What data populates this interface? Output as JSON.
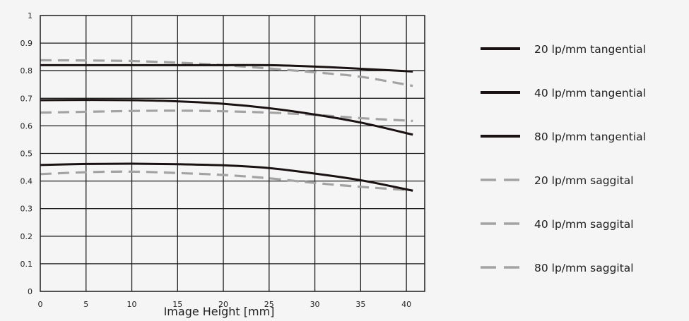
{
  "chart_data": {
    "type": "line",
    "title": "",
    "xlabel": "Image Height [mm]",
    "ylabel": "",
    "xlim": [
      0,
      42
    ],
    "ylim": [
      0,
      1
    ],
    "xticks": [
      0,
      5,
      10,
      15,
      20,
      25,
      30,
      35,
      40
    ],
    "yticks": [
      0,
      0.1,
      0.2,
      0.3,
      0.4,
      0.5,
      0.6,
      0.7,
      0.8,
      0.9,
      1
    ],
    "grid": true,
    "legend_position": "right",
    "series": [
      {
        "name": "20 lp/mm tangential",
        "color": "#1a1212",
        "style": "solid",
        "x": [
          0,
          5,
          10,
          15,
          20,
          25,
          30,
          35,
          40.7
        ],
        "y": [
          0.82,
          0.82,
          0.82,
          0.82,
          0.82,
          0.82,
          0.815,
          0.807,
          0.797
        ]
      },
      {
        "name": "40 lp/mm tangential",
        "color": "#1a1212",
        "style": "solid",
        "x": [
          0,
          5,
          10,
          15,
          20,
          25,
          30,
          35,
          40.7
        ],
        "y": [
          0.693,
          0.694,
          0.693,
          0.689,
          0.68,
          0.664,
          0.641,
          0.612,
          0.568
        ]
      },
      {
        "name": "80 lp/mm tangential",
        "color": "#1a1212",
        "style": "solid",
        "x": [
          0,
          5,
          10,
          15,
          20,
          25,
          30,
          35,
          40.7
        ],
        "y": [
          0.458,
          0.462,
          0.463,
          0.461,
          0.457,
          0.447,
          0.427,
          0.403,
          0.365
        ]
      },
      {
        "name": "20 lp/mm saggital",
        "color": "#a3a3a3",
        "style": "dashed",
        "x": [
          0,
          5,
          10,
          15,
          20,
          25,
          30,
          35,
          40.7
        ],
        "y": [
          0.838,
          0.837,
          0.835,
          0.829,
          0.82,
          0.808,
          0.794,
          0.778,
          0.745
        ]
      },
      {
        "name": "40 lp/mm saggital",
        "color": "#a3a3a3",
        "style": "dashed",
        "x": [
          0,
          5,
          10,
          15,
          20,
          25,
          30,
          35,
          40.7
        ],
        "y": [
          0.648,
          0.651,
          0.654,
          0.655,
          0.653,
          0.648,
          0.64,
          0.628,
          0.618
        ]
      },
      {
        "name": "80 lp/mm saggital",
        "color": "#a3a3a3",
        "style": "dashed",
        "x": [
          0,
          5,
          10,
          15,
          20,
          25,
          30,
          35,
          40.7
        ],
        "y": [
          0.425,
          0.432,
          0.434,
          0.429,
          0.422,
          0.41,
          0.393,
          0.379,
          0.366
        ]
      }
    ]
  }
}
